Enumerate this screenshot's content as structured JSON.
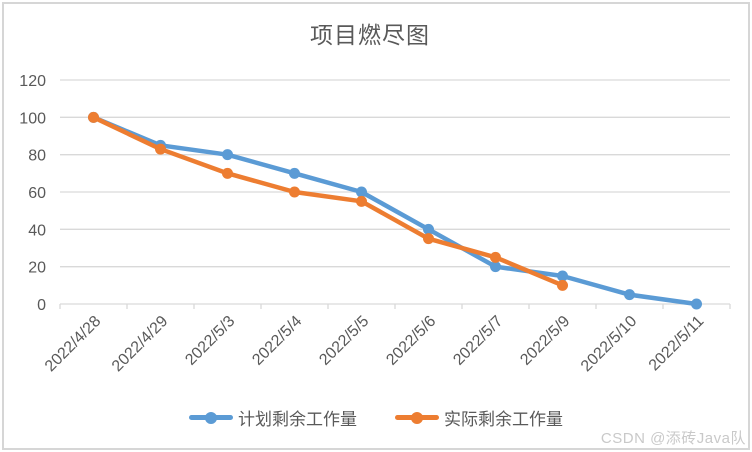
{
  "page": {
    "watermark": "CSDN @添砖Java队"
  },
  "chart_data": {
    "type": "line",
    "title": "项目燃尽图",
    "categories": [
      "2022/4/28",
      "2022/4/29",
      "2022/5/3",
      "2022/5/4",
      "2022/5/5",
      "2022/5/6",
      "2022/5/7",
      "2022/5/9",
      "2022/5/10",
      "2022/5/11"
    ],
    "series": [
      {
        "name": "计划剩余工作量",
        "color": "#5B9BD5",
        "values": [
          100,
          85,
          80,
          70,
          60,
          40,
          20,
          15,
          5,
          0
        ]
      },
      {
        "name": "实际剩余工作量",
        "color": "#ED7D31",
        "values": [
          100,
          83,
          70,
          60,
          55,
          35,
          25,
          10,
          null,
          null
        ]
      }
    ],
    "xlabel": "",
    "ylabel": "",
    "ylim": [
      0,
      120
    ],
    "yticks": [
      0,
      20,
      40,
      60,
      80,
      100,
      120
    ],
    "grid": "horizontal",
    "legend_position": "bottom",
    "marker": "circle",
    "colors": {
      "axis_text": "#595959",
      "gridline": "#d9d9d9",
      "title_text": "#595959",
      "watermark": "#c9c9c9",
      "frame_border": "#d6d6d6"
    }
  }
}
